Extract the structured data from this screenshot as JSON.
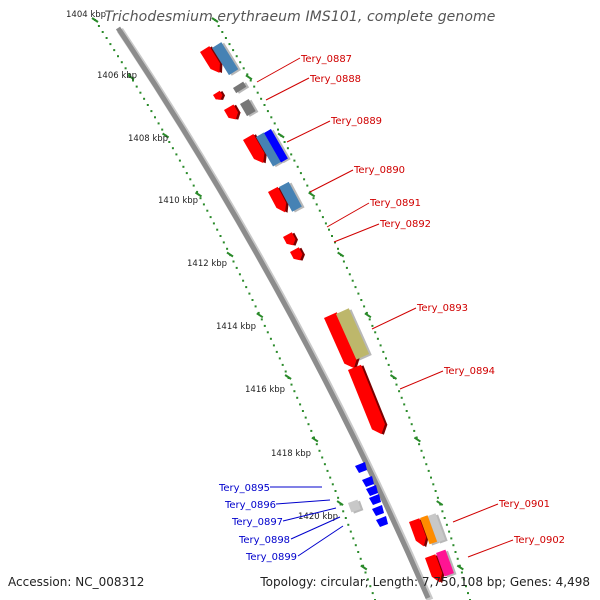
{
  "title": "Trichodesmium erythraeum IMS101, complete genome",
  "footer": {
    "accession": "Accession: NC_008312",
    "info": "Topology: circular; Length: 7,750,108 bp; Genes: 4,498"
  },
  "kbp_labels": [
    "1404 kbp",
    "1406 kbp",
    "1408 kbp",
    "1410 kbp",
    "1412 kbp",
    "1414 kbp",
    "1416 kbp",
    "1418 kbp",
    "1420 kbp"
  ],
  "gene_labels_plus": [
    "Tery_0887",
    "Tery_0888",
    "Tery_0889",
    "Tery_0890",
    "Tery_0891",
    "Tery_0892",
    "Tery_0893",
    "Tery_0894",
    "Tery_0901",
    "Tery_0902"
  ],
  "gene_labels_minus": [
    "Tery_0895",
    "Tery_0896",
    "Tery_0897",
    "Tery_0898",
    "Tery_0899"
  ],
  "colors": {
    "backbone": "#8c8c8c",
    "cds_red": "#ff0000",
    "label_red": "#d00000",
    "label_blue": "#0000cc",
    "steelblue": "#4682b4",
    "blue": "#0000ff",
    "gray": "#777777",
    "lightgray": "#c8c8c8",
    "khaki": "#bdb76b",
    "orange": "#ff8c00",
    "pink": "#ff1493",
    "scale_green": "#2a8a2a"
  }
}
